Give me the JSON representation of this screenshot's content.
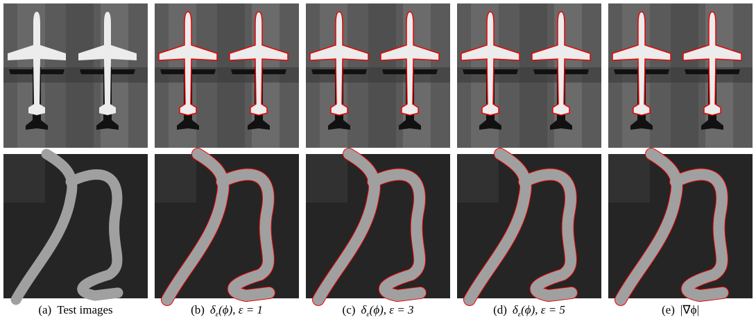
{
  "figure": {
    "captions": [
      {
        "label": "(a)",
        "text": "Test images"
      },
      {
        "label": "(b)",
        "math": "δ",
        "sub": "ε",
        "rest": "(ϕ), ε = 1"
      },
      {
        "label": "(c)",
        "math": "δ",
        "sub": "ε",
        "rest": "(ϕ), ε = 3"
      },
      {
        "label": "(d)",
        "math": "δ",
        "sub": "ε",
        "rest": "(ϕ), ε = 5"
      },
      {
        "label": "(e)",
        "text": "|∇ϕ|"
      }
    ]
  }
}
